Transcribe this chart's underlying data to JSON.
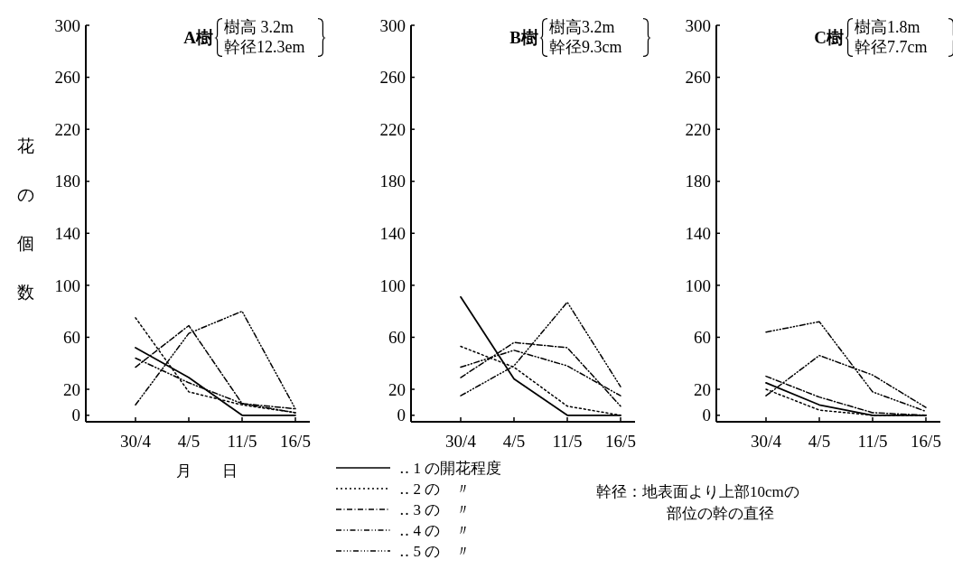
{
  "chart_data": [
    {
      "type": "line",
      "title": "A樹",
      "annotations": [
        "樹高 3.2m",
        "幹径12.3em"
      ],
      "ylabel": "花の個数",
      "xlabel": "月　　日",
      "categories": [
        "30/4",
        "4/5",
        "11/5",
        "16/5"
      ],
      "ylim": [
        -5,
        300
      ],
      "yticks": [
        0,
        20,
        60,
        100,
        140,
        180,
        220,
        260,
        300
      ],
      "grid": false,
      "legend": "bottom",
      "marker": "none",
      "series": [
        {
          "name": "‥ 1 の開花程度",
          "color": "#000000",
          "line_style": "solid",
          "values": [
            52,
            29,
            0,
            0
          ]
        },
        {
          "name": "‥ 2 の　〃",
          "color": "#000000",
          "line_style": "dotted",
          "values": [
            75,
            18,
            8,
            2
          ]
        },
        {
          "name": "‥ 3 の　〃",
          "color": "#000000",
          "line_style": "dashed",
          "values": [
            37,
            69,
            9,
            5
          ]
        },
        {
          "name": "‥ 4 の　〃",
          "color": "#000000",
          "line_style": "dashed",
          "values": [
            44,
            25,
            9,
            2
          ]
        },
        {
          "name": "‥ 5 の　〃",
          "color": "#000000",
          "line_style": "dashed",
          "values": [
            8,
            63,
            80,
            5
          ]
        }
      ]
    },
    {
      "type": "line",
      "title": "B樹",
      "annotations": [
        "樹高3.2m",
        "幹径9.3cm"
      ],
      "categories": [
        "30/4",
        "4/5",
        "11/5",
        "16/5"
      ],
      "ylim": [
        -5,
        300
      ],
      "yticks": [
        0,
        20,
        60,
        100,
        140,
        180,
        220,
        260,
        300
      ],
      "grid": false,
      "marker": "none",
      "series": [
        {
          "color": "#000000",
          "line_style": "solid",
          "values": [
            91,
            28,
            0,
            0
          ]
        },
        {
          "color": "#000000",
          "line_style": "dotted",
          "values": [
            53,
            37,
            7,
            0
          ]
        },
        {
          "color": "#000000",
          "line_style": "dashed",
          "values": [
            29,
            56,
            52,
            7
          ]
        },
        {
          "color": "#000000",
          "line_style": "dashed",
          "values": [
            37,
            50,
            38,
            15
          ]
        },
        {
          "color": "#000000",
          "line_style": "dashed",
          "values": [
            15,
            38,
            87,
            22
          ]
        }
      ]
    },
    {
      "type": "line",
      "title": "C樹",
      "annotations": [
        "樹高1.8m",
        "幹径7.7cm",
        "幹径：地表面より上部10cmの部位の幹の直径"
      ],
      "categories": [
        "30/4",
        "4/5",
        "11/5",
        "16/5"
      ],
      "ylim": [
        -5,
        300
      ],
      "yticks": [
        0,
        20,
        60,
        100,
        140,
        180,
        220,
        260,
        300
      ],
      "grid": false,
      "marker": "none",
      "series": [
        {
          "color": "#000000",
          "line_style": "solid",
          "values": [
            25,
            8,
            0,
            0
          ]
        },
        {
          "color": "#000000",
          "line_style": "dotted",
          "values": [
            20,
            4,
            0,
            0
          ]
        },
        {
          "color": "#000000",
          "line_style": "dashed",
          "values": [
            30,
            14,
            2,
            0
          ]
        },
        {
          "color": "#000000",
          "line_style": "dashed",
          "values": [
            15,
            46,
            31,
            6
          ]
        },
        {
          "color": "#000000",
          "line_style": "dashed",
          "values": [
            64,
            72,
            18,
            3
          ]
        }
      ]
    }
  ]
}
